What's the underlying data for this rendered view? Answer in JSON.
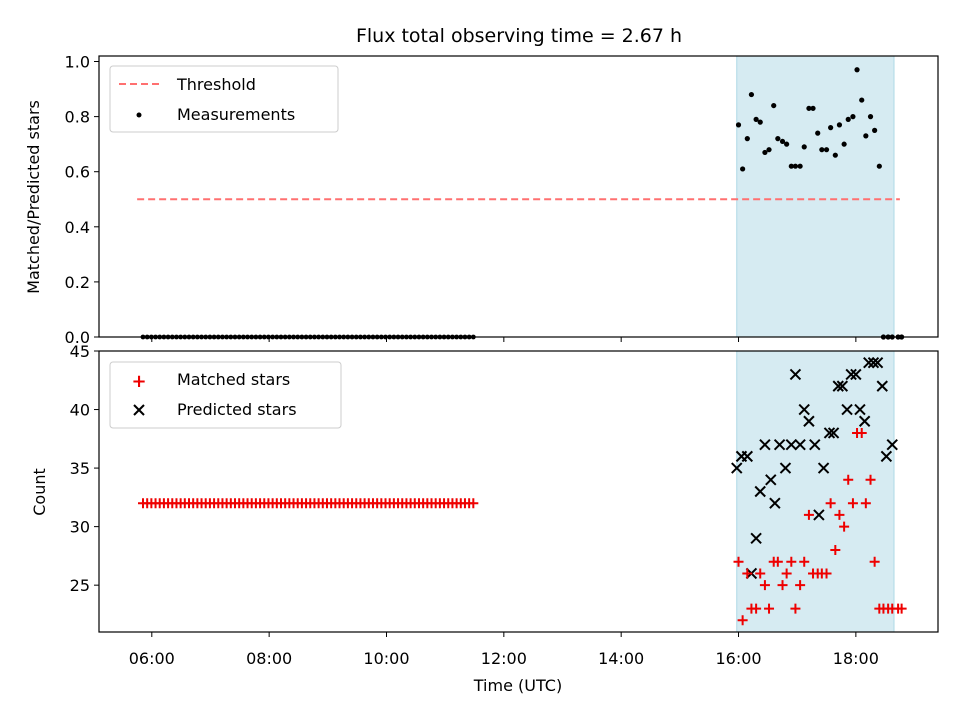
{
  "chart_data": {
    "type": "scatter",
    "title": "Flux total observing time = 2.67 h",
    "xlabel": "Time (UTC)",
    "x_ticks": [
      "06:00",
      "08:00",
      "10:00",
      "12:00",
      "14:00",
      "16:00",
      "18:00"
    ],
    "x_tick_hours": [
      6,
      8,
      10,
      12,
      14,
      16,
      18
    ],
    "xlim_hours": [
      5.1,
      19.4
    ],
    "highlight_span_hours": [
      15.97,
      18.65
    ],
    "highlight_color": "#add8e6",
    "panels": [
      {
        "ylabel": "Matched/Predicted stars",
        "ylim": [
          0,
          1.02
        ],
        "y_ticks": [
          0.0,
          0.2,
          0.4,
          0.6,
          0.8,
          1.0
        ],
        "y_tick_labels": [
          "0.0",
          "0.2",
          "0.4",
          "0.6",
          "0.8",
          "1.0"
        ],
        "legend": [
          "Threshold",
          "Measurements"
        ],
        "legend_position": "upper-left",
        "threshold": {
          "name": "Threshold",
          "value": 0.5,
          "x_range_hours": [
            5.75,
            18.75
          ],
          "color": "#ff7070",
          "style": "dashed"
        },
        "measurements": {
          "name": "Measurements",
          "color": "#000000",
          "zero_series": {
            "x_start_hours": 5.85,
            "x_end_hours": 11.48,
            "count": 80,
            "y": 0.0
          },
          "x_hours": [
            16.0,
            16.07,
            16.15,
            16.22,
            16.3,
            16.37,
            16.45,
            16.52,
            16.6,
            16.67,
            16.75,
            16.82,
            16.9,
            16.97,
            17.05,
            17.12,
            17.2,
            17.27,
            17.35,
            17.42,
            17.5,
            17.57,
            17.65,
            17.72,
            17.8,
            17.87,
            17.95,
            18.02,
            18.1,
            18.17,
            18.25,
            18.32,
            18.4,
            18.47,
            18.55,
            18.62,
            18.72,
            18.78
          ],
          "y": [
            0.77,
            0.61,
            0.72,
            0.88,
            0.79,
            0.78,
            0.67,
            0.68,
            0.84,
            0.72,
            0.71,
            0.7,
            0.62,
            0.62,
            0.62,
            0.69,
            0.83,
            0.83,
            0.74,
            0.68,
            0.68,
            0.76,
            0.66,
            0.77,
            0.7,
            0.79,
            0.8,
            0.97,
            0.86,
            0.73,
            0.8,
            0.75,
            0.62,
            0.0,
            0.0,
            0.0,
            0.0,
            0.0
          ]
        }
      },
      {
        "ylabel": "Count",
        "ylim": [
          21,
          45
        ],
        "y_ticks": [
          25,
          30,
          35,
          40,
          45
        ],
        "y_tick_labels": [
          "25",
          "30",
          "35",
          "40",
          "45"
        ],
        "legend": [
          "Matched stars",
          "Predicted stars"
        ],
        "legend_position": "upper-left",
        "matched": {
          "name": "Matched stars",
          "color": "#ee0000",
          "constant_series": {
            "x_start_hours": 5.85,
            "x_end_hours": 11.48,
            "count": 80,
            "y": 32
          },
          "x_hours": [
            16.0,
            16.07,
            16.15,
            16.22,
            16.3,
            16.37,
            16.45,
            16.52,
            16.6,
            16.67,
            16.75,
            16.82,
            16.9,
            16.97,
            17.05,
            17.12,
            17.2,
            17.27,
            17.35,
            17.42,
            17.5,
            17.57,
            17.65,
            17.72,
            17.8,
            17.87,
            17.95,
            18.02,
            18.1,
            18.17,
            18.25,
            18.32,
            18.4,
            18.47,
            18.55,
            18.62,
            18.72,
            18.78
          ],
          "y": [
            27,
            22,
            26,
            23,
            23,
            26,
            25,
            23,
            27,
            27,
            25,
            26,
            27,
            23,
            25,
            27,
            31,
            26,
            26,
            26,
            26,
            32,
            28,
            31,
            30,
            34,
            32,
            38,
            38,
            32,
            34,
            27,
            23,
            23,
            23,
            23,
            23,
            23
          ]
        },
        "predicted": {
          "name": "Predicted stars",
          "color": "#000000",
          "x_hours": [
            15.97,
            16.05,
            16.15,
            16.22,
            16.3,
            16.37,
            16.45,
            16.55,
            16.62,
            16.7,
            16.8,
            16.9,
            16.97,
            17.05,
            17.12,
            17.2,
            17.3,
            17.37,
            17.45,
            17.55,
            17.62,
            17.7,
            17.77,
            17.85,
            17.92,
            18.0,
            18.07,
            18.15,
            18.22,
            18.3,
            18.37,
            18.45,
            18.52,
            18.62
          ],
          "y": [
            35,
            36,
            36,
            26,
            29,
            33,
            37,
            34,
            32,
            37,
            35,
            37,
            43,
            37,
            40,
            39,
            37,
            31,
            35,
            38,
            38,
            42,
            42,
            40,
            43,
            43,
            40,
            39,
            44,
            44,
            44,
            42,
            36,
            37
          ]
        }
      }
    ]
  }
}
